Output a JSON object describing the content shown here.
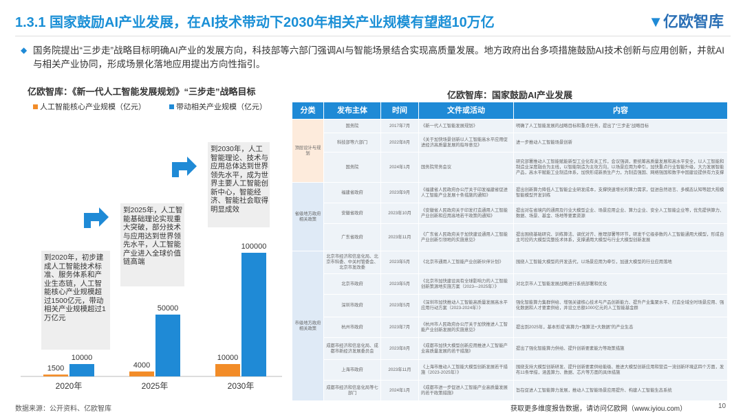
{
  "header": {
    "title": "1.3.1 国家鼓励AI产业发展，在AI技术带动下2030年相关产业规模有望超10万亿",
    "logo": "亿欧智库"
  },
  "intro": "国务院提出“三步走”战略目标明确AI产业的发展方向，科技部等六部门强调AI与智能场景结合实现高质量发展。地方政府出台多项措施鼓励AI技术创新与应用创新，并就AI与相关产业协同，形成场景化落地应用提出方向性指引。",
  "chart_data": {
    "type": "bar",
    "title": "亿欧智库：《新一代人工智能发展规划》“三步走”战略目标",
    "categories": [
      "2020年",
      "2025年",
      "2030年"
    ],
    "series": [
      {
        "name": "人工智能核心产业规模（亿元）",
        "color": "#f28c28",
        "values": [
          1500,
          4000,
          10000
        ]
      },
      {
        "name": "带动相关产业规模（亿元）",
        "color": "#1f8ad6",
        "values": [
          10000,
          50000,
          100000
        ]
      }
    ],
    "annotations": [
      "到2020年，初步建成人工智能技术标准、服务体系和产业生态链，人工智能核心产业规模超过1500亿元，带动相关产业规模超过1万亿元",
      "到2025年，人工智能基础理论实现重大突破，部分技术与应用达到世界领先水平，人工智能产业进入全球价值链高端",
      "到2030年，人工智能理论、技术与应用总体达到世界领先水平，成为世界主要人工智能创新中心，智能经济、智能社会取得明显成效"
    ]
  },
  "table": {
    "title": "亿欧智库：国家鼓励AI产业发展",
    "headers": [
      "分类",
      "发布主体",
      "时间",
      "文件或活动",
      "内容"
    ],
    "groups": [
      {
        "category": "顶层设计与规划",
        "rows": [
          [
            "国务院",
            "2017年7月",
            "《新一代人工智能发展规划》",
            "明确了人工智能发展的战略目标和重点任务，提出了“三步走”战略目标"
          ],
          [
            "科技部等六部门",
            "2022年8月",
            "《关于加快场景创新以人工智能高水平应用促进经济高质量发展的指导意见》",
            "进一步推动人工智能场景创新"
          ],
          [
            "国务院",
            "2024年1月",
            "国务院常务会议",
            "研究部署推动人工智能赋能新型工业化有关工作，会议强调，要统筹高质量发展和高水平安全，以人工智能和制造业深度融合为主线，以智能制造为主攻方向，以场景应用为牵引，加快重点行业智能升级，大力发展智能产品，高水平赋能工业制造体系，加快形成新质生产力，为制造强国、网络强国和数字中国建设提供有力支撑"
          ]
        ]
      },
      {
        "category": "省级地方政府相关政策",
        "rows": [
          [
            "福建省政府",
            "2023年9月",
            "《福建省人民政府办公厅关于印发福建省促进人工智能产业发展十条措施的通知》",
            "提出创新算力降低人工智能企业研发成本，支撑快速增长的算力需求，促进自然语言、多模态认知等超大规模智能模型开发训练"
          ],
          [
            "安徽省政府",
            "2023年10月",
            "《安徽省人民政府关于印发打造通用人工智能产业创新和应用高地若干政策的通知》",
            "提出对在省境内的通用及行业大模型企业、场景应用企业、算力企业、安全人工智能企业等，优先提供算力、数据、场景、基金、场地等要素资源"
          ],
          [
            "广东省政府",
            "2023年11月",
            "《广东省人民政府关于加快建设通用人工智能产业创新引领地的实施意见》",
            "提出围绕基础研究、训练算法、调优对齐、推理部署等环节，研发千亿级参数的人工智能通用大模型，形成自主可控的大模型完整技术体系，支撑通用大模型与行业大模型创新发展"
          ]
        ]
      },
      {
        "category": "市级地方政府相关政策",
        "rows": [
          [
            "北京市经济和信息化局、北京市科委、中关村管委会、北京市发改委",
            "2023年5月",
            "《北京市通用人工智能产业创新伙伴计划》",
            "围绕人工智能大模型的开发迭代，以场景应用为牵引，加速大模型的行业应用落地"
          ],
          [
            "北京市政府",
            "2023年5月",
            "《北京市加快建设具有全球影响力的人工智能创新策源地实施方案（2023—2025年）》",
            "对北京市人工智能发展战略进行系统部署和优化"
          ],
          [
            "深圳市政府",
            "2023年5月",
            "《深圳市加快推动人工智能高质量发展高水平应用行动方案（2023-2024年）》",
            "强化智能算力集群供给、增强关键核心技术与产品创新能力、提升产业集聚水平、打造全域全时场景应用、强化数据和人才要素供给，并设立总额1000亿元的人工智能基金群"
          ],
          [
            "杭州市政府",
            "2023年7月",
            "《杭州市人民政府办公厅关于加快推进人工智能产业创新发展的实施意见》",
            "提出到2025年，基本形成“高算力+强算法+大数据”的产业生态"
          ],
          [
            "成都市经济和信息化局、成都市新经济发展委员会",
            "2023年8月",
            "《成都市加快大模型创新应用推进人工智能产业高质量发展的若干措施》",
            "提出了强化智能算力供给、提升创新要素能力等政策措施"
          ],
          [
            "上海市政府",
            "2023年11月",
            "《上海市推动人工智能大模型创新发展若干措施（2023-2025年）》",
            "围绕支持大模型创新研发、提升创新要素供给能级、推进大模型创新应用和营造一流创新环境这四个方面，发布11条举措，涵盖算力、数据、芯片等方面的具体措施"
          ],
          [
            "成都市经济和信息化局等七部门",
            "2024年1月",
            "《成都市进一步促进人工智能产业高质量发展的若干政策措施》",
            "旨在促进人工智能算力发展，推动人工智能场景应用提升、构建人工智能生态系统"
          ]
        ]
      }
    ]
  },
  "footer": {
    "source": "数据来源：公开资料、亿欧智库",
    "link": "获取更多维度报告数据，请访问亿欧网（www.iyiou.com）",
    "page": "10"
  }
}
